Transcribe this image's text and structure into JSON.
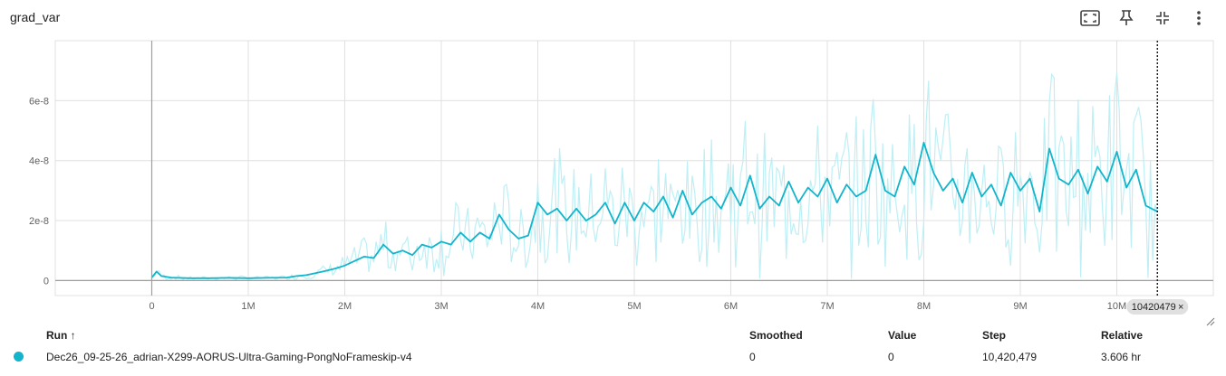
{
  "card": {
    "title": "grad_var"
  },
  "toolbar": {
    "icons": [
      "fit-domain-icon",
      "pin-icon",
      "collapse-icon",
      "more-vert-icon"
    ]
  },
  "chart_data": {
    "type": "line",
    "title": "grad_var",
    "xlabel": "",
    "ylabel": "",
    "xlim": [
      -1000000,
      11000000
    ],
    "ylim": [
      -5e-09,
      8e-08
    ],
    "x_ticks": [
      0,
      1000000,
      2000000,
      3000000,
      4000000,
      5000000,
      6000000,
      7000000,
      8000000,
      9000000,
      10000000
    ],
    "x_tick_labels": [
      "0",
      "1M",
      "2M",
      "3M",
      "4M",
      "5M",
      "6M",
      "7M",
      "8M",
      "9M",
      "10M"
    ],
    "y_ticks": [
      0,
      2e-08,
      4e-08,
      6e-08
    ],
    "y_tick_labels": [
      "0",
      "2e-8",
      "4e-8",
      "6e-8"
    ],
    "grid": true,
    "hover_step_label": "10420479",
    "colors": {
      "series": "#12b5cb",
      "raw": "#bdeff5",
      "grid": "#e0e0e0"
    },
    "series": [
      {
        "name": "Dec26_09-25-26_adrian-X299-AORUS-Ultra-Gaming-PongNoFrameskip-v4",
        "x": [
          0,
          50000,
          100000,
          200000,
          400000,
          600000,
          800000,
          1000000,
          1200000,
          1400000,
          1500000,
          1600000,
          1700000,
          1800000,
          1900000,
          2000000,
          2100000,
          2200000,
          2300000,
          2400000,
          2500000,
          2600000,
          2700000,
          2800000,
          2900000,
          3000000,
          3100000,
          3200000,
          3300000,
          3400000,
          3500000,
          3600000,
          3700000,
          3800000,
          3900000,
          4000000,
          4100000,
          4200000,
          4300000,
          4400000,
          4500000,
          4600000,
          4700000,
          4800000,
          4900000,
          5000000,
          5100000,
          5200000,
          5300000,
          5400000,
          5500000,
          5600000,
          5700000,
          5800000,
          5900000,
          6000000,
          6100000,
          6200000,
          6300000,
          6400000,
          6500000,
          6600000,
          6700000,
          6800000,
          6900000,
          7000000,
          7100000,
          7200000,
          7300000,
          7400000,
          7500000,
          7600000,
          7700000,
          7800000,
          7900000,
          8000000,
          8100000,
          8200000,
          8300000,
          8400000,
          8500000,
          8600000,
          8700000,
          8800000,
          8900000,
          9000000,
          9100000,
          9200000,
          9300000,
          9400000,
          9500000,
          9600000,
          9700000,
          9800000,
          9900000,
          10000000,
          10100000,
          10200000,
          10300000,
          10420479
        ],
        "values": [
          1e-09,
          3e-09,
          1.5e-09,
          1e-09,
          8e-10,
          8e-10,
          9e-10,
          8e-10,
          9e-10,
          1e-09,
          1.5e-09,
          1.8e-09,
          2.5e-09,
          3.2e-09,
          4e-09,
          5e-09,
          6.5e-09,
          8e-09,
          7.5e-09,
          1.2e-08,
          9e-09,
          1e-08,
          8.5e-09,
          1.2e-08,
          1.1e-08,
          1.3e-08,
          1.2e-08,
          1.6e-08,
          1.3e-08,
          1.6e-08,
          1.4e-08,
          2.2e-08,
          1.7e-08,
          1.4e-08,
          1.5e-08,
          2.6e-08,
          2.2e-08,
          2.4e-08,
          2e-08,
          2.4e-08,
          2e-08,
          2.2e-08,
          2.6e-08,
          1.9e-08,
          2.6e-08,
          2e-08,
          2.6e-08,
          2.3e-08,
          2.8e-08,
          2.1e-08,
          3e-08,
          2.2e-08,
          2.6e-08,
          2.8e-08,
          2.4e-08,
          3.1e-08,
          2.5e-08,
          3.5e-08,
          2.4e-08,
          2.8e-08,
          2.5e-08,
          3.3e-08,
          2.6e-08,
          3.1e-08,
          2.8e-08,
          3.4e-08,
          2.6e-08,
          3.2e-08,
          2.8e-08,
          3e-08,
          4.2e-08,
          3e-08,
          2.8e-08,
          3.8e-08,
          3.2e-08,
          4.6e-08,
          3.6e-08,
          3e-08,
          3.4e-08,
          2.6e-08,
          3.6e-08,
          2.8e-08,
          3.2e-08,
          2.5e-08,
          3.6e-08,
          3e-08,
          3.4e-08,
          2.3e-08,
          4.4e-08,
          3.4e-08,
          3.2e-08,
          3.7e-08,
          2.9e-08,
          3.8e-08,
          3.3e-08,
          4.3e-08,
          3.1e-08,
          3.7e-08,
          2.5e-08,
          2.3e-08
        ]
      }
    ]
  },
  "table": {
    "headers": {
      "run": "Run ↑",
      "smoothed": "Smoothed",
      "value": "Value",
      "step": "Step",
      "relative": "Relative"
    },
    "rows": [
      {
        "run": "Dec26_09-25-26_adrian-X299-AORUS-Ultra-Gaming-PongNoFrameskip-v4",
        "smoothed": "0",
        "value": "0",
        "step": "10,420,479",
        "relative": "3.606 hr"
      }
    ]
  }
}
